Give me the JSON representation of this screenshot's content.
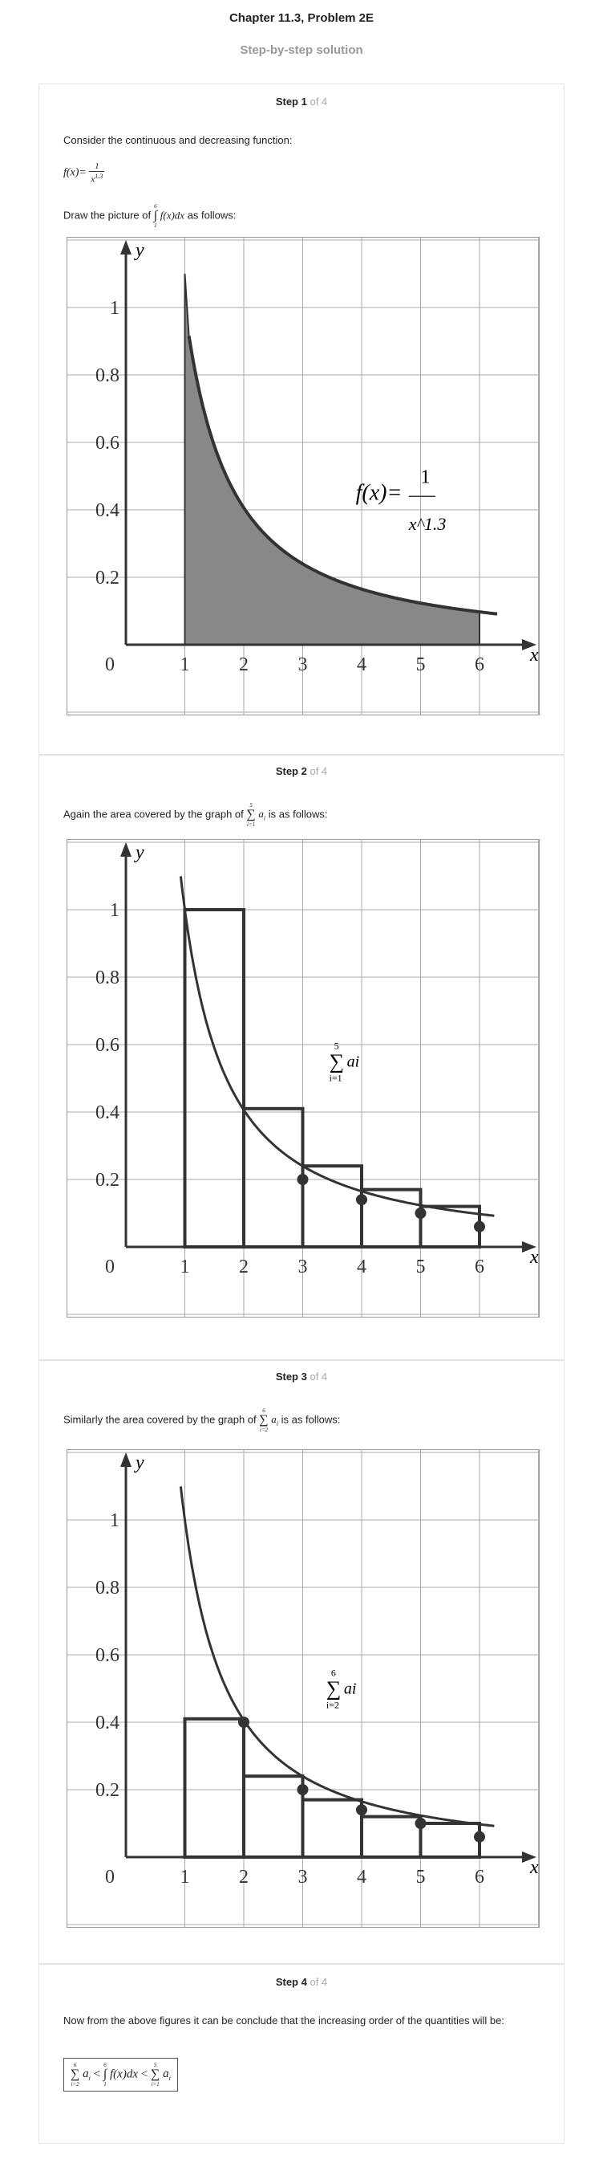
{
  "header": {
    "title": "Chapter 11.3, Problem 2E",
    "subtitle": "Step-by-step solution"
  },
  "steps": [
    {
      "label": "Step 1",
      "of": "of 4",
      "text1": "Consider the continuous and decreasing function:",
      "text2_pre": "Draw the picture of",
      "text2_post": "as follows:"
    },
    {
      "label": "Step 2",
      "of": "of 4",
      "text_pre": "Again the area covered by the graph of",
      "text_post": "is as follows:"
    },
    {
      "label": "Step 3",
      "of": "of 4",
      "text_pre": "Similarly the area covered by the graph of",
      "text_post": "is as follows:"
    },
    {
      "label": "Step 4",
      "of": "of 4",
      "text": "Now from the above figures it can be conclude that the increasing order of the quantities will be:"
    }
  ],
  "function_label": {
    "lhs": "f(x)=",
    "num": "1",
    "den": "x",
    "exp": "1.3"
  },
  "integral": {
    "upper": "6",
    "lower": "1",
    "body": "f(x)dx"
  },
  "sum_step2": {
    "upper": "5",
    "lower": "i=1",
    "term": "a",
    "sub": "i"
  },
  "sum_step3": {
    "upper": "6",
    "lower": "i=2",
    "term": "a",
    "sub": "i"
  },
  "graph_labels": {
    "x": "x",
    "y": "y",
    "xticks": [
      "0",
      "1",
      "2",
      "3",
      "4",
      "5",
      "6"
    ],
    "yticks": [
      "1",
      "0.8",
      "0.6",
      "0.4",
      "0.2"
    ]
  },
  "chart_data": [
    {
      "type": "area",
      "function": "f(x) = 1/x^1.3",
      "x": [
        1,
        1.5,
        2,
        2.5,
        3,
        3.5,
        4,
        4.5,
        5,
        5.5,
        6
      ],
      "y": [
        1.0,
        0.59,
        0.41,
        0.3,
        0.24,
        0.2,
        0.17,
        0.14,
        0.12,
        0.11,
        0.1
      ],
      "shaded_interval": [
        1,
        6
      ],
      "xlim": [
        0,
        6.5
      ],
      "ylim": [
        0,
        1.1
      ],
      "grid": true
    },
    {
      "type": "bar",
      "label": "sum_{i=1}^{5} a_i",
      "categories": [
        "1-2",
        "2-3",
        "3-4",
        "4-5",
        "5-6"
      ],
      "values": [
        1.0,
        0.41,
        0.24,
        0.17,
        0.12
      ],
      "curve_points": [
        [
          3,
          0.2
        ],
        [
          4,
          0.14
        ],
        [
          5,
          0.1
        ],
        [
          6,
          0.06
        ]
      ],
      "xlim": [
        0,
        6.5
      ],
      "ylim": [
        0,
        1.1
      ],
      "grid": true
    },
    {
      "type": "bar",
      "label": "sum_{i=2}^{6} a_i",
      "categories": [
        "1-2",
        "2-3",
        "3-4",
        "4-5",
        "5-6"
      ],
      "values": [
        0.41,
        0.24,
        0.17,
        0.12,
        0.1
      ],
      "curve_points": [
        [
          2,
          0.4
        ],
        [
          3,
          0.2
        ],
        [
          4,
          0.14
        ],
        [
          5,
          0.1
        ],
        [
          6,
          0.06
        ]
      ],
      "xlim": [
        0,
        6.5
      ],
      "ylim": [
        0,
        1.1
      ],
      "grid": true
    }
  ]
}
